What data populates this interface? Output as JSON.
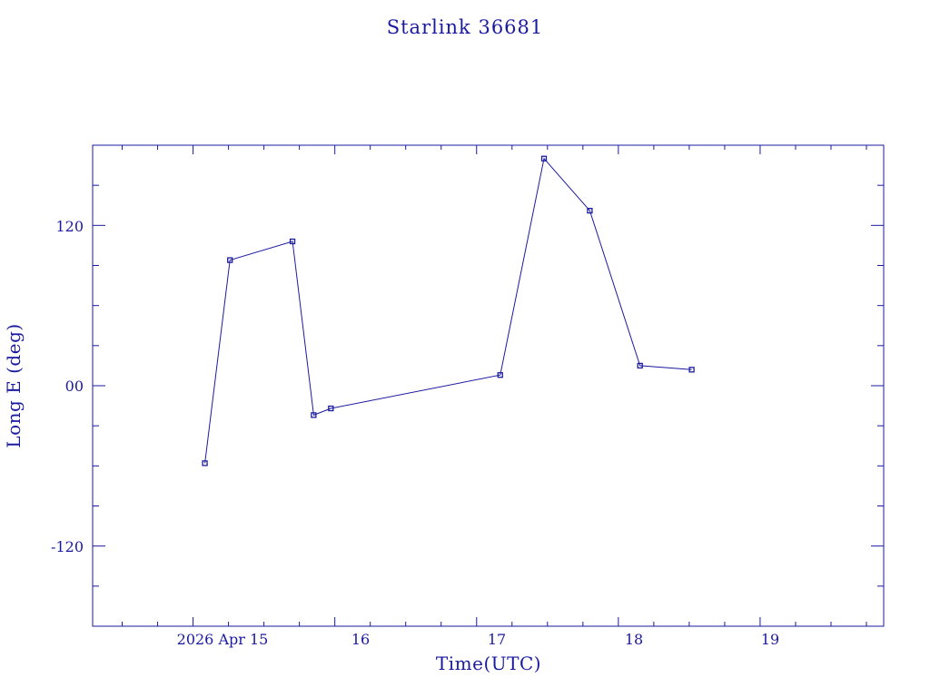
{
  "chart_data": {
    "type": "line",
    "title": "Starlink 36681",
    "xlabel": "Time(UTC)",
    "ylabel": "Long E (deg)",
    "x_tick_labels": [
      "2026 Apr 15",
      "16",
      "17",
      "18",
      "19"
    ],
    "y_tick_labels": [
      "-120",
      "00",
      "120"
    ],
    "y_ticks": [
      -120,
      0,
      120
    ],
    "ylim": [
      -180,
      180
    ],
    "xlim": [
      "2026-04-14 07:00",
      "2026-04-19 20:55"
    ],
    "grid": false,
    "series": [
      {
        "x": [
          "2026-04-15 02:00",
          "2026-04-15 06:15",
          "2026-04-15 16:50",
          "2026-04-15 20:25",
          "2026-04-15 23:20",
          "2026-04-17 04:00",
          "2026-04-17 11:25",
          "2026-04-17 19:10",
          "2026-04-18 03:40",
          "2026-04-18 12:25"
        ],
        "y": [
          -58,
          94,
          108,
          -22,
          -17,
          8,
          170,
          131,
          15,
          12
        ]
      }
    ],
    "color": "#1a1aa0"
  }
}
